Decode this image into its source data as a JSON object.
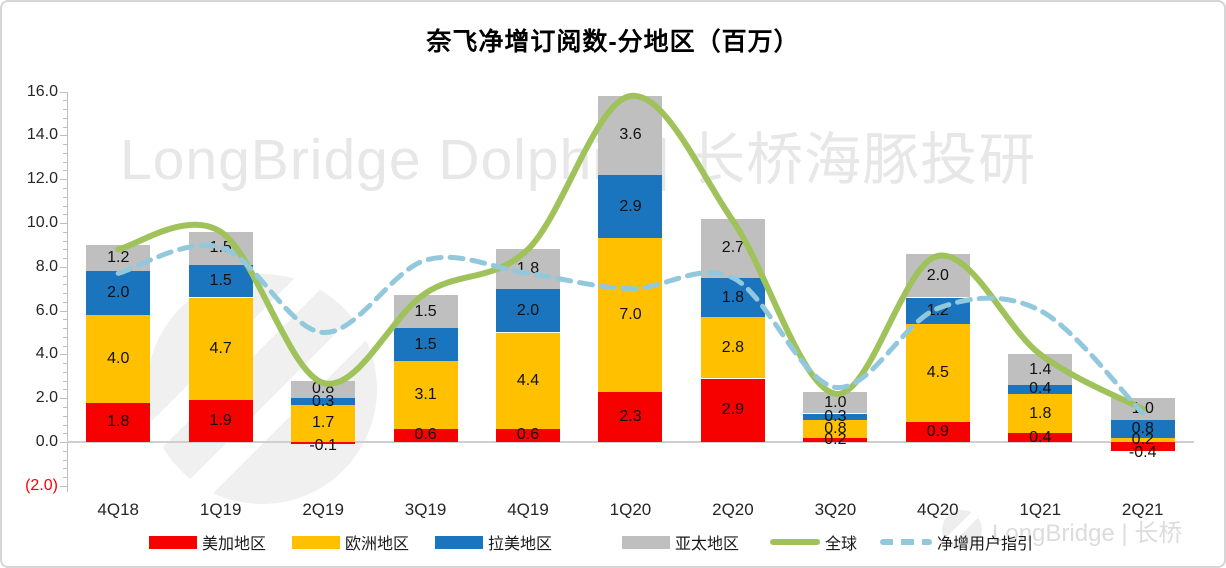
{
  "watermarks": {
    "center": "LongBridge Dolphin | 长桥海豚投研",
    "corner": "LongBridge | 长桥"
  },
  "chart_data": {
    "type": "bar",
    "subtype": "stacked-bars-with-smooth-lines",
    "title": "奈飞净增订阅数-分地区（百万）",
    "categories": [
      "4Q18",
      "1Q19",
      "2Q19",
      "3Q19",
      "4Q19",
      "1Q20",
      "2Q20",
      "3Q20",
      "4Q20",
      "1Q21",
      "2Q21"
    ],
    "bar_series": [
      {
        "name": "美加地区",
        "color": "#f60000",
        "values": [
          1.8,
          1.9,
          -0.1,
          0.6,
          0.6,
          2.3,
          2.9,
          0.2,
          0.9,
          0.4,
          -0.4
        ]
      },
      {
        "name": "欧洲地区",
        "color": "#ffc000",
        "values": [
          4.0,
          4.7,
          1.7,
          3.1,
          4.4,
          7.0,
          2.8,
          0.8,
          4.5,
          1.8,
          0.2
        ]
      },
      {
        "name": "拉美地区",
        "color": "#1b74be",
        "values": [
          2.0,
          1.5,
          0.3,
          1.5,
          2.0,
          2.9,
          1.8,
          0.3,
          1.2,
          0.4,
          0.8
        ]
      },
      {
        "name": "亚太地区",
        "color": "#bfbfbf",
        "values": [
          1.2,
          1.5,
          0.8,
          1.5,
          1.8,
          3.6,
          2.7,
          1.0,
          2.0,
          1.4,
          1.0
        ]
      }
    ],
    "line_series": [
      {
        "name": "全球",
        "style": "solid",
        "color": "#a0c25b",
        "values": [
          8.8,
          9.6,
          2.7,
          6.8,
          8.8,
          15.8,
          10.1,
          2.2,
          8.5,
          4.0,
          1.5
        ]
      },
      {
        "name": "净增用户指引",
        "style": "dashed",
        "color": "#92c8dc",
        "values": [
          7.7,
          8.9,
          5.0,
          8.3,
          7.7,
          7.0,
          7.5,
          2.5,
          6.1,
          6.0,
          1.3
        ]
      }
    ],
    "ylim": [
      -2.0,
      16.0
    ],
    "ytick_step": 2.0,
    "ytick_minor_step": 0.4,
    "ytick_labels": [
      "16.0",
      "14.0",
      "12.0",
      "10.0",
      "8.0",
      "6.0",
      "4.0",
      "2.0",
      "0.0",
      "(2.0)"
    ],
    "value_labels": true,
    "grid": false,
    "legend_position": "bottom"
  }
}
